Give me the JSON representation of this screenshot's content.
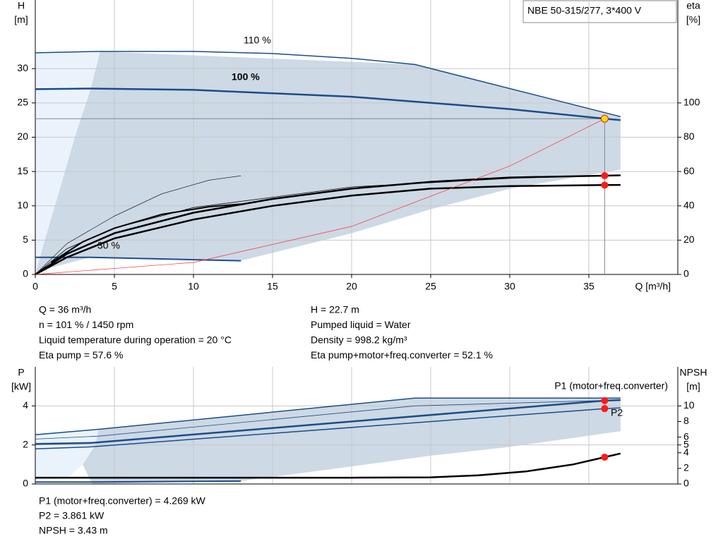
{
  "legend_box": "NBE 50-315/277, 3*400 V",
  "chart_data": [
    {
      "type": "line",
      "ylabel": [
        "H",
        "[m]"
      ],
      "y2label": [
        "eta",
        "[%]"
      ],
      "xlabel": "Q [m³/h]",
      "xlim": [
        0,
        40
      ],
      "xticks": [
        0,
        5,
        10,
        15,
        20,
        25,
        30,
        35
      ],
      "ylim": [
        0,
        40
      ],
      "yticks": [
        0,
        5,
        10,
        15,
        20,
        25,
        30
      ],
      "y2lim": [
        0,
        160
      ],
      "y2ticks": [
        0,
        20,
        40,
        60,
        80,
        100
      ],
      "grid": true,
      "annotations": [
        "110 %",
        "100 %",
        "30 %"
      ],
      "regions": [
        {
          "color": "#eaf3fb",
          "x": [
            0,
            4.1,
            3.5,
            2.5,
            1.5,
            0.6,
            0
          ],
          "y": [
            32.3,
            32.5,
            27,
            20,
            12,
            5,
            0
          ]
        },
        {
          "color": "#cdd9e5",
          "x": [
            4.1,
            24,
            37,
            37,
            30,
            25,
            20,
            13,
            3.5,
            1,
            0,
            0.6,
            1.5,
            2.5,
            3.5
          ],
          "y": [
            32.5,
            30.6,
            23,
            15.3,
            12.5,
            9.5,
            6,
            2,
            2.5,
            1,
            0,
            5,
            12,
            20,
            27
          ]
        }
      ],
      "series": [
        {
          "color": "#1a4d8a",
          "width": 1.5,
          "x": [
            0,
            4,
            10,
            15,
            20,
            24,
            37
          ],
          "values": [
            32.3,
            32.5,
            32.5,
            32.2,
            31.5,
            30.6,
            23
          ]
        },
        {
          "color": "#1a4d8a",
          "width": 2.5,
          "x": [
            0,
            3.5,
            10,
            20,
            30,
            36,
            37
          ],
          "values": [
            27,
            27.1,
            26.9,
            25.9,
            24.1,
            22.7,
            22.5
          ]
        },
        {
          "color": "#1a4d8a",
          "width": 2,
          "x": [
            0,
            3.5,
            13
          ],
          "values": [
            2.5,
            2.5,
            2
          ]
        },
        {
          "color": "#000000",
          "width": 2.5,
          "axis": "y2",
          "x": [
            0,
            2,
            5,
            10,
            15,
            20,
            25,
            30,
            36,
            37
          ],
          "values": [
            0,
            12,
            24,
            36,
            44,
            50,
            54,
            56.5,
            57.6,
            57.8
          ]
        },
        {
          "color": "#000000",
          "width": 2.5,
          "axis": "y2",
          "x": [
            0,
            2,
            5,
            10,
            15,
            20,
            25,
            30,
            36,
            37
          ],
          "values": [
            0,
            10,
            21,
            32,
            40,
            46,
            50,
            51.5,
            52.1,
            52.2
          ]
        },
        {
          "color": "#000000",
          "width": 0.8,
          "axis": "y2",
          "x": [
            0,
            2,
            5,
            10,
            20,
            30,
            37
          ],
          "values": [
            0,
            15,
            27,
            39,
            51,
            56,
            58
          ]
        },
        {
          "color": "#000000",
          "width": 0.6,
          "axis": "y2",
          "x": [
            0,
            2,
            5,
            8,
            11,
            13
          ],
          "values": [
            0,
            18,
            34,
            47,
            55,
            57.5
          ]
        },
        {
          "color": "#000000",
          "width": 2,
          "axis": "y2",
          "x": [
            1,
            3,
            5,
            8,
            11,
            13
          ],
          "values": [
            7,
            19,
            27,
            35,
            39.5,
            41
          ]
        },
        {
          "color": "#ff3030",
          "width": 0.7,
          "x": [
            0,
            10,
            20,
            30,
            36
          ],
          "values": [
            0,
            1.75,
            7,
            15.8,
            22.7
          ]
        }
      ],
      "points": [
        {
          "x": 36,
          "y": 22.7,
          "color": "#ffe000"
        },
        {
          "x": 36,
          "y": 57.6,
          "axis": "y2",
          "color": "#ff1a1a"
        },
        {
          "x": 36,
          "y": 52.1,
          "axis": "y2",
          "color": "#ff1a1a"
        }
      ]
    },
    {
      "type": "line",
      "ylabel": [
        "P",
        "[kW]"
      ],
      "y2label": [
        "NPSH",
        "[m]"
      ],
      "xlim": [
        0,
        40
      ],
      "ylim": [
        0,
        6
      ],
      "yticks": [
        0,
        2,
        4
      ],
      "y2lim": [
        0,
        15
      ],
      "y2ticks": [
        0,
        2,
        4,
        5,
        6,
        8,
        10
      ],
      "grid": true,
      "annotations": [
        "P1 (motor+freq.converter)",
        "P2"
      ],
      "regions": [
        {
          "color": "#eaf3fb",
          "x": [
            0,
            4,
            3.8,
            3,
            2,
            0
          ],
          "y": [
            2.6,
            2.8,
            2,
            1,
            0.3,
            0.2
          ]
        },
        {
          "color": "#cdd9e5",
          "x": [
            4,
            24,
            37,
            37,
            30,
            25,
            20,
            13,
            3.6,
            3,
            3.8
          ],
          "y": [
            2.8,
            4.4,
            4.4,
            2.7,
            1.9,
            1.45,
            0.9,
            0.15,
            0,
            1,
            2
          ]
        }
      ],
      "series": [
        {
          "color": "#1a4d8a",
          "width": 1.5,
          "x": [
            0,
            4,
            24,
            37
          ],
          "values": [
            2.52,
            2.8,
            4.4,
            4.4
          ]
        },
        {
          "color": "#1a4d8a",
          "width": 0.8,
          "x": [
            0,
            4,
            24,
            37
          ],
          "values": [
            2.3,
            2.45,
            4.0,
            4.3
          ]
        },
        {
          "color": "#1a4d8a",
          "width": 2.5,
          "x": [
            0,
            3.5,
            36,
            37
          ],
          "values": [
            2.05,
            2.1,
            4.269,
            4.3
          ]
        },
        {
          "color": "#1a4d8a",
          "width": 1.5,
          "x": [
            0,
            3.5,
            36,
            37
          ],
          "values": [
            1.8,
            1.9,
            3.861,
            3.9
          ]
        },
        {
          "color": "#000000",
          "width": 2.5,
          "axis": "y2",
          "x": [
            0,
            5,
            10,
            20,
            25,
            28,
            31,
            34,
            36,
            37
          ],
          "values": [
            0.8,
            0.8,
            0.8,
            0.8,
            0.85,
            1.1,
            1.6,
            2.5,
            3.43,
            3.9
          ]
        },
        {
          "color": "#1a4d8a",
          "width": 2,
          "x": [
            0,
            3.5,
            13
          ],
          "values": [
            0.1,
            0.1,
            0.15
          ]
        }
      ],
      "points": [
        {
          "x": 36,
          "y": 4.269,
          "color": "#ff1a1a"
        },
        {
          "x": 36,
          "y": 3.861,
          "color": "#ff1a1a"
        },
        {
          "x": 36,
          "y": 3.43,
          "axis": "y2",
          "color": "#ff1a1a"
        }
      ]
    }
  ],
  "info": {
    "left": [
      "Q = 36 m³/h",
      "n = 101 % / 1450 rpm",
      "Liquid temperature during operation = 20 °C",
      "Eta pump = 57.6 %"
    ],
    "right": [
      "H = 22.7 m",
      "Pumped liquid = Water",
      "Density = 998.2 kg/m³",
      "Eta pump+motor+freq.converter = 52.1 %"
    ],
    "bottom": [
      "P1 (motor+freq.converter) = 4.269 kW",
      "P2 = 3.861 kW",
      "NPSH = 3.43 m"
    ]
  }
}
